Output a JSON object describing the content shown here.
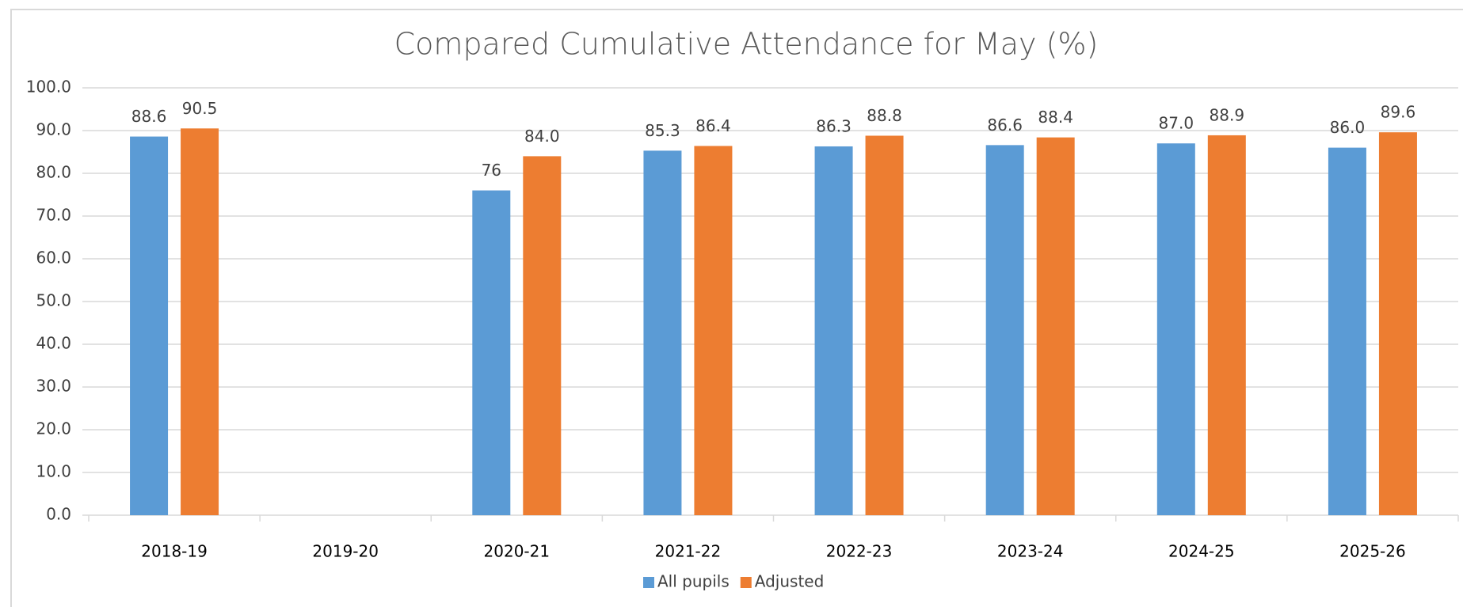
{
  "chart_data": {
    "type": "bar",
    "title": "Compared Cumulative Attendance for May (%)",
    "categories": [
      "2018-19",
      "2019-20",
      "2020-21",
      "2021-22",
      "2022-23",
      "2023-24",
      "2024-25",
      "2025-26"
    ],
    "series": [
      {
        "name": "All pupils",
        "color": "#5b9bd5",
        "values": [
          88.6,
          null,
          76,
          85.3,
          86.3,
          86.6,
          87.0,
          86.0
        ],
        "value_labels": [
          "88.6",
          null,
          "76",
          "85.3",
          "86.3",
          "86.6",
          "87.0",
          "86.0"
        ]
      },
      {
        "name": "Adjusted",
        "color": "#ed7d31",
        "values": [
          90.5,
          null,
          84.0,
          86.4,
          88.8,
          88.4,
          88.9,
          89.6
        ],
        "value_labels": [
          "90.5",
          null,
          "84.0",
          "86.4",
          "88.8",
          "88.4",
          "88.9",
          "89.6"
        ]
      }
    ],
    "ylim": [
      0,
      100
    ],
    "yticks": [
      {
        "value": 0,
        "label": "0.0"
      },
      {
        "value": 10,
        "label": "10.0"
      },
      {
        "value": 20,
        "label": "20.0"
      },
      {
        "value": 30,
        "label": "30.0"
      },
      {
        "value": 40,
        "label": "40.0"
      },
      {
        "value": 50,
        "label": "50.0"
      },
      {
        "value": 60,
        "label": "60.0"
      },
      {
        "value": 70,
        "label": "70.0"
      },
      {
        "value": 80,
        "label": "80.0"
      },
      {
        "value": 90,
        "label": "90.0"
      },
      {
        "value": 100,
        "label": "100.0"
      }
    ],
    "grid": true,
    "legend": "bottom"
  }
}
